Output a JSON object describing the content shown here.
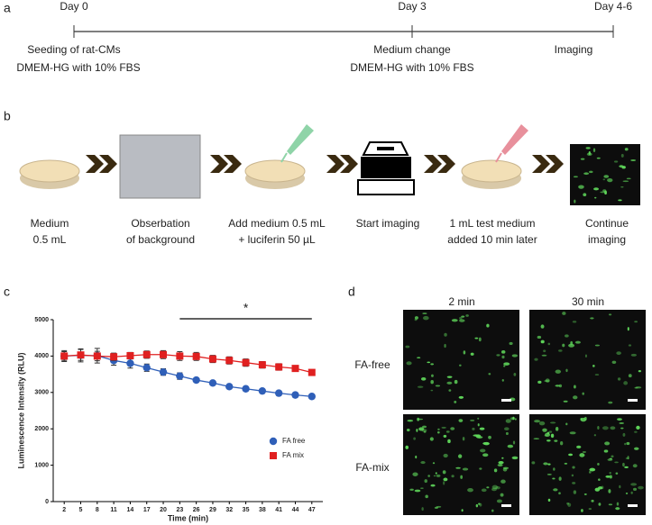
{
  "panel_labels": [
    "a",
    "b",
    "c",
    "d"
  ],
  "timeline": {
    "days": [
      "Day 0",
      "Day 3",
      "Day 4-6"
    ],
    "notes": [
      [
        "Seeding of rat-CMs",
        "DMEM-HG with 10% FBS"
      ],
      [
        "Medium change",
        "DMEM-HG with 10% FBS"
      ],
      [
        "Imaging"
      ]
    ]
  },
  "workflow": {
    "steps": [
      [
        "Medium",
        "0.5 mL"
      ],
      [
        "Obserbation",
        "of background"
      ],
      [
        "Add medium 0.5 mL",
        "+ luciferin  50 µL"
      ],
      [
        "Start imaging"
      ],
      [
        "1 mL test medium",
        "added 10 min later"
      ],
      [
        "Continue",
        "imaging"
      ]
    ]
  },
  "chart_data": {
    "type": "line",
    "x_label": "Time (min)",
    "y_label": "Luminescence Intensity (RLU)",
    "x": [
      2,
      5,
      8,
      11,
      14,
      17,
      20,
      23,
      26,
      29,
      32,
      35,
      38,
      41,
      44,
      47
    ],
    "xlim": [
      0,
      49
    ],
    "xticks": [
      2,
      5,
      8,
      11,
      14,
      17,
      20,
      23,
      26,
      29,
      32,
      35,
      38,
      41,
      44,
      47
    ],
    "ylim": [
      0,
      5000
    ],
    "yticks": [
      0,
      1000,
      2000,
      3000,
      4000,
      5000
    ],
    "series": [
      {
        "name": "FA free",
        "color": "#2f5fb8",
        "marker": "circle",
        "values": [
          4000,
          4020,
          4010,
          3880,
          3800,
          3680,
          3560,
          3450,
          3340,
          3260,
          3160,
          3100,
          3040,
          2980,
          2930,
          2890
        ],
        "errors": [
          150,
          180,
          200,
          130,
          130,
          100,
          90,
          90,
          50,
          50,
          50,
          40,
          40,
          40,
          50,
          50
        ]
      },
      {
        "name": "FA mix",
        "color": "#e02020",
        "marker": "square",
        "values": [
          4000,
          4030,
          4000,
          3980,
          4010,
          4040,
          4040,
          4000,
          3990,
          3920,
          3880,
          3820,
          3760,
          3700,
          3660,
          3550
        ],
        "errors": [
          120,
          150,
          130,
          100,
          90,
          100,
          110,
          120,
          110,
          100,
          100,
          100,
          90,
          90,
          70,
          60
        ]
      }
    ],
    "significance": {
      "label": "*",
      "x_range": [
        23,
        47
      ]
    },
    "legend": "lower right"
  },
  "microscopy": {
    "col_headers": [
      "2 min",
      "30 min"
    ],
    "row_labels": [
      "FA-free",
      "FA-mix"
    ]
  }
}
